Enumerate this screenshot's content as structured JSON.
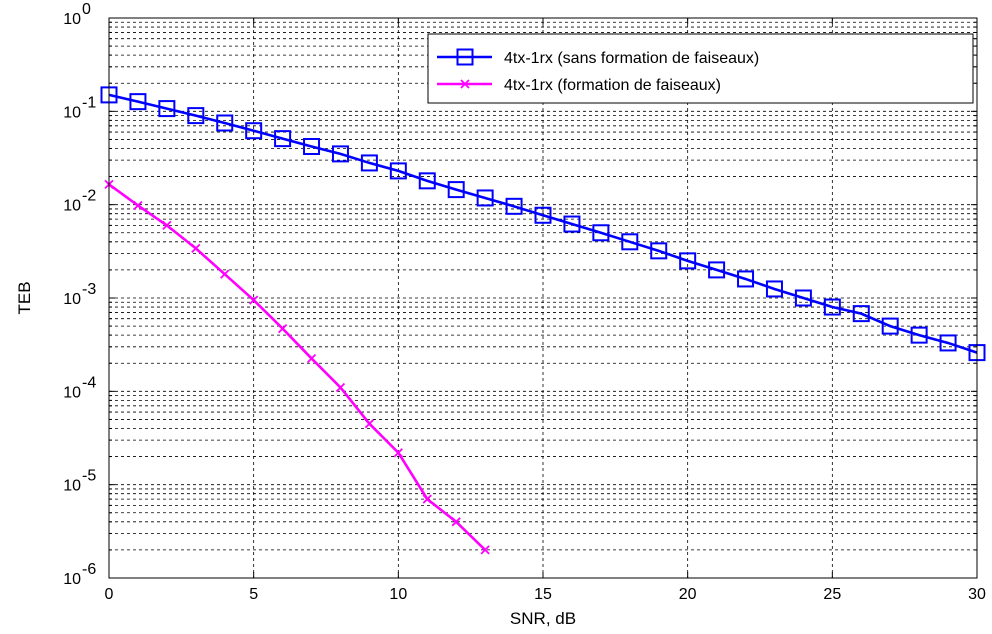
{
  "chart_data": {
    "type": "line",
    "title": "",
    "xlabel": "SNR, dB",
    "ylabel": "TEB",
    "xlim": [
      0,
      30
    ],
    "ylim": [
      1e-06,
      1
    ],
    "yscale": "log",
    "grid": true,
    "grid_style": "dashed",
    "legend_position": "top-right",
    "xticks": [
      0,
      5,
      10,
      15,
      20,
      25,
      30
    ],
    "xtick_labels": [
      "0",
      "5",
      "10",
      "15",
      "20",
      "25",
      "30"
    ],
    "yticks": [
      {
        "value": 1,
        "base": "10",
        "exp": "0"
      },
      {
        "value": 0.1,
        "base": "10",
        "exp": "-1"
      },
      {
        "value": 0.01,
        "base": "10",
        "exp": "-2"
      },
      {
        "value": 0.001,
        "base": "10",
        "exp": "-3"
      },
      {
        "value": 0.0001,
        "base": "10",
        "exp": "-4"
      },
      {
        "value": 1e-05,
        "base": "10",
        "exp": "-5"
      },
      {
        "value": 1e-06,
        "base": "10",
        "exp": "-6"
      }
    ],
    "series": [
      {
        "name": "4tx-1rx (sans formation de faiseaux)",
        "color": "#0000ff",
        "marker": "square",
        "x": [
          0,
          1,
          2,
          3,
          4,
          5,
          6,
          7,
          8,
          9,
          10,
          11,
          12,
          13,
          14,
          15,
          16,
          17,
          18,
          19,
          20,
          21,
          22,
          23,
          24,
          25,
          26,
          27,
          28,
          29,
          30
        ],
        "y": [
          0.15,
          0.127,
          0.107,
          0.09,
          0.075,
          0.062,
          0.051,
          0.042,
          0.035,
          0.028,
          0.023,
          0.018,
          0.0145,
          0.0118,
          0.0096,
          0.0077,
          0.0062,
          0.005,
          0.004,
          0.0032,
          0.0025,
          0.002,
          0.0016,
          0.00125,
          0.001,
          0.0008,
          0.00068,
          0.0005,
          0.0004,
          0.00033,
          0.00026
        ]
      },
      {
        "name": "4tx-1rx (formation de faiseaux)",
        "color": "#ff00ff",
        "marker": "x",
        "x": [
          0,
          1,
          2,
          3,
          4,
          5,
          6,
          7,
          8,
          9,
          10,
          11,
          12,
          13
        ],
        "y": [
          0.0165,
          0.0098,
          0.006,
          0.0034,
          0.0018,
          0.00095,
          0.00047,
          0.000225,
          0.00011,
          4.5e-05,
          2.2e-05,
          7e-06,
          4e-06,
          2e-06
        ]
      }
    ]
  }
}
